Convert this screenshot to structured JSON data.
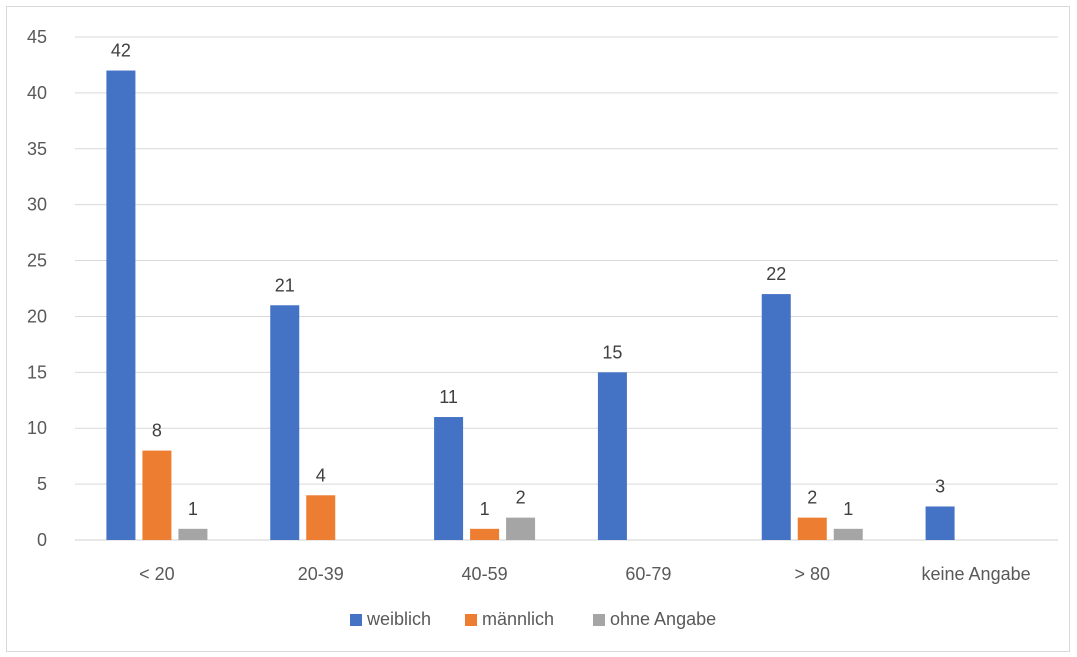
{
  "chart_data": {
    "type": "bar",
    "title": "",
    "xlabel": "",
    "ylabel": "",
    "categories": [
      "< 20",
      "20-39",
      "40-59",
      "60-79",
      "> 80",
      "keine Angabe"
    ],
    "series": [
      {
        "name": "weiblich",
        "color": "#4472c4",
        "values": [
          42,
          21,
          11,
          15,
          22,
          3
        ]
      },
      {
        "name": "männlich",
        "color": "#ed7d31",
        "values": [
          8,
          4,
          1,
          null,
          2,
          null
        ]
      },
      {
        "name": "ohne Angabe",
        "color": "#a5a5a5",
        "values": [
          1,
          null,
          2,
          null,
          1,
          null
        ]
      }
    ],
    "ylim": [
      0,
      45
    ],
    "yticks": [
      0,
      5,
      10,
      15,
      20,
      25,
      30,
      35,
      40,
      45
    ],
    "grid": true,
    "legend": "bottom",
    "data_labels": true
  }
}
